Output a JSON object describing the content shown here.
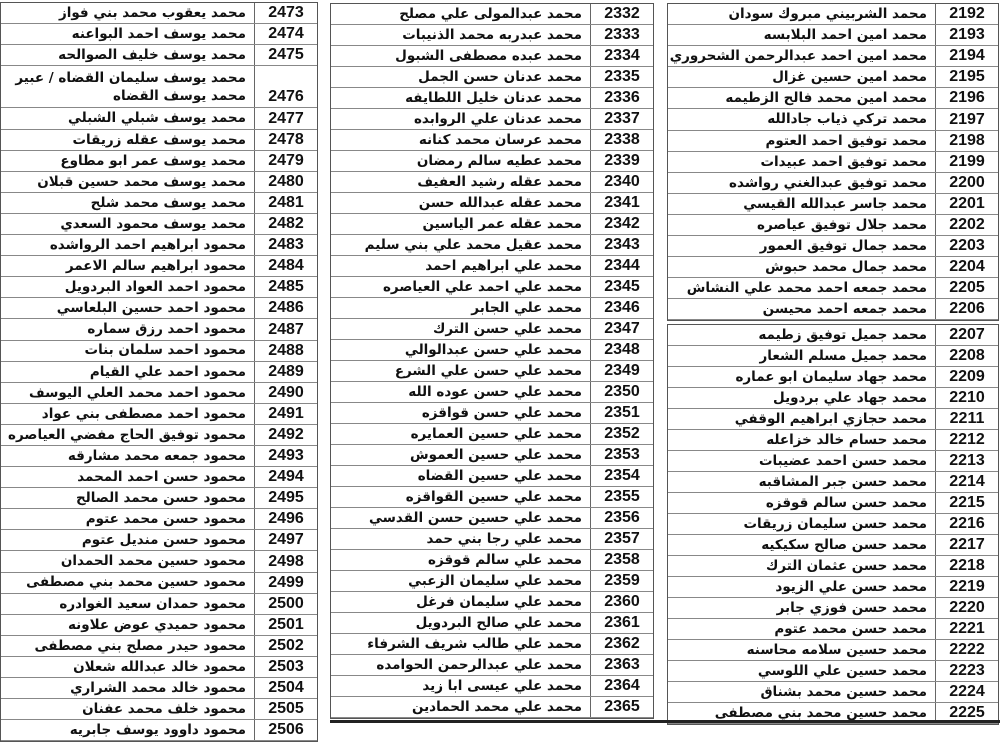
{
  "tables": [
    {
      "id": "t-left",
      "rows": [
        [
          "2473",
          "محمد يعقوب محمد بني فواز"
        ],
        [
          "2474",
          "محمد يوسف احمد البواعنه"
        ],
        [
          "2475",
          "محمد يوسف خليف الصوالحه"
        ],
        [
          "2476",
          "محمد يوسف سليمان القضاه / عبير محمد يوسف القضاه"
        ],
        [
          "2477",
          "محمد يوسف شبلي الشبلي"
        ],
        [
          "2478",
          "محمد يوسف عقله زريقات"
        ],
        [
          "2479",
          "محمد يوسف عمر ابو مطاوع"
        ],
        [
          "2480",
          "محمد يوسف محمد حسين قبلان"
        ],
        [
          "2481",
          "محمد يوسف محمد شلح"
        ],
        [
          "2482",
          "محمد يوسف محمود السعدي"
        ],
        [
          "2483",
          "محمود ابراهيم احمد الرواشده"
        ],
        [
          "2484",
          "محمود ابراهيم سالم الاعمر"
        ],
        [
          "2485",
          "محمود احمد العواد البردويل"
        ],
        [
          "2486",
          "محمود احمد حسين البلعاسي"
        ],
        [
          "2487",
          "محمود احمد رزق سماره"
        ],
        [
          "2488",
          "محمود احمد سلمان بنات"
        ],
        [
          "2489",
          "محمود احمد علي القيام"
        ],
        [
          "2490",
          "محمود احمد محمد العلي اليوسف"
        ],
        [
          "2491",
          "محمود احمد مصطفى بني عواد"
        ],
        [
          "2492",
          "محمود توفيق الحاج مفضي العياصره"
        ],
        [
          "2493",
          "محمود جمعه محمد مشارقه"
        ],
        [
          "2494",
          "محمود حسن احمد المحمد"
        ],
        [
          "2495",
          "محمود حسن محمد الصالح"
        ],
        [
          "2496",
          "محمود حسن محمد عتوم"
        ],
        [
          "2497",
          "محمود حسن منديل عتوم"
        ],
        [
          "2498",
          "محمود حسين محمد الحمدان"
        ],
        [
          "2499",
          "محمود حسين محمد بني مصطفى"
        ],
        [
          "2500",
          "محمود حمدان سعيد الغوادره"
        ],
        [
          "2501",
          "محمود حميدي عوض علاونه"
        ],
        [
          "2502",
          "محمود حيدر مصلح بني مصطفى"
        ],
        [
          "2503",
          "محمود خالد عبدالله شعلان"
        ],
        [
          "2504",
          "محمود خالد محمد الشراري"
        ],
        [
          "2505",
          "محمود خلف محمد عفنان"
        ],
        [
          "2506",
          "محمود داوود يوسف جابريه"
        ]
      ]
    },
    {
      "id": "t-mid",
      "rows": [
        [
          "2332",
          "محمد عبدالمولى علي مصلح"
        ],
        [
          "2333",
          "محمد عبدربه محمد الذنيبات"
        ],
        [
          "2334",
          "محمد عبده مصطفى الشبول"
        ],
        [
          "2335",
          "محمد عدنان حسن الجمل"
        ],
        [
          "2336",
          "محمد عدنان خليل اللطايفه"
        ],
        [
          "2337",
          "محمد عدنان علي الروابده"
        ],
        [
          "2338",
          "محمد عرسان محمد كنانه"
        ],
        [
          "2339",
          "محمد عطيه سالم رمضان"
        ],
        [
          "2340",
          "محمد عقله رشيد العفيف"
        ],
        [
          "2341",
          "محمد عقله عبدالله حسن"
        ],
        [
          "2342",
          "محمد عقله عمر الياسين"
        ],
        [
          "2343",
          "محمد عقيل محمد علي بني سليم"
        ],
        [
          "2344",
          "محمد علي ابراهيم احمد"
        ],
        [
          "2345",
          "محمد علي احمد علي العياصره"
        ],
        [
          "2346",
          "محمد علي الجابر"
        ],
        [
          "2347",
          "محمد علي حسن الترك"
        ],
        [
          "2348",
          "محمد علي حسن عبدالوالي"
        ],
        [
          "2349",
          "محمد علي حسن علي الشرع"
        ],
        [
          "2350",
          "محمد علي حسن عوده الله"
        ],
        [
          "2351",
          "محمد علي حسن قواقزه"
        ],
        [
          "2352",
          "محمد علي حسين العمايره"
        ],
        [
          "2353",
          "محمد علي حسين العموش"
        ],
        [
          "2354",
          "محمد علي حسين القضاه"
        ],
        [
          "2355",
          "محمد علي حسين القواقزه"
        ],
        [
          "2356",
          "محمد علي حسين حسن القدسي"
        ],
        [
          "2357",
          "محمد علي رجا بني حمد"
        ],
        [
          "2358",
          "محمد علي سالم قوقزه"
        ],
        [
          "2359",
          "محمد علي سليمان  الزعبي"
        ],
        [
          "2360",
          "محمد علي سليمان فرغل"
        ],
        [
          "2361",
          "محمد علي صالح البردويل"
        ],
        [
          "2362",
          "محمد علي طالب شريف الشرفاء"
        ],
        [
          "2363",
          "محمد علي عبدالرحمن الحوامده"
        ],
        [
          "2364",
          "محمد علي عيسى ابا زيد"
        ],
        [
          "2365",
          "محمد علي محمد الحمادين"
        ]
      ]
    },
    {
      "id": "t-right-a",
      "rows": [
        [
          "2192",
          "محمد الشربيني مبروك  سودان"
        ],
        [
          "2193",
          "محمد امين احمد البلابسه"
        ],
        [
          "2194",
          "محمد امين احمد عبدالرحمن الشحروري"
        ],
        [
          "2195",
          "محمد امين حسين غزال"
        ],
        [
          "2196",
          "محمد امين محمد فالح الزطيمه"
        ],
        [
          "2197",
          "محمد تركي ذياب جادالله"
        ],
        [
          "2198",
          "محمد توفيق احمد العتوم"
        ],
        [
          "2199",
          "محمد توفيق احمد عبيدات"
        ],
        [
          "2200",
          "محمد توفيق عبدالغني رواشده"
        ],
        [
          "2201",
          "محمد جاسر عبدالله القيسي"
        ],
        [
          "2202",
          "محمد جلال توفيق عياصره"
        ],
        [
          "2203",
          "محمد جمال توفيق العمور"
        ],
        [
          "2204",
          "محمد جمال محمد حبوش"
        ],
        [
          "2205",
          "محمد جمعه احمد محمد علي النشاش"
        ],
        [
          "2206",
          "محمد جمعه احمد محيسن"
        ]
      ]
    },
    {
      "id": "t-right-b",
      "rows": [
        [
          "2207",
          "محمد جميل توفيق زطيمه"
        ],
        [
          "2208",
          "محمد جميل مسلم الشعار"
        ],
        [
          "2209",
          "محمد جهاد سليمان ابو عماره"
        ],
        [
          "2210",
          "محمد جهاد علي بردويل"
        ],
        [
          "2211",
          "محمد حجازي ابراهيم الوقفي"
        ],
        [
          "2212",
          "محمد حسام خالد خزاعله"
        ],
        [
          "2213",
          "محمد حسن احمد عضيبات"
        ],
        [
          "2214",
          "محمد حسن جبر المشاقبه"
        ],
        [
          "2215",
          "محمد حسن سالم قوقزه"
        ],
        [
          "2216",
          "محمد حسن سليمان زريقات"
        ],
        [
          "2217",
          "محمد حسن صالح سكيكيه"
        ],
        [
          "2218",
          "محمد حسن عثمان الترك"
        ],
        [
          "2219",
          "محمد حسن علي الزيود"
        ],
        [
          "2220",
          "محمد حسن فوزي جابر"
        ],
        [
          "2221",
          "محمد حسن محمد عتوم"
        ],
        [
          "2222",
          "محمد حسين سلامه محاسنه"
        ],
        [
          "2223",
          "محمد حسين علي اللوسي"
        ],
        [
          "2224",
          "محمد حسين محمد بشناق"
        ],
        [
          "2225",
          "محمد حسين محمد بني مصطفى"
        ]
      ]
    }
  ]
}
